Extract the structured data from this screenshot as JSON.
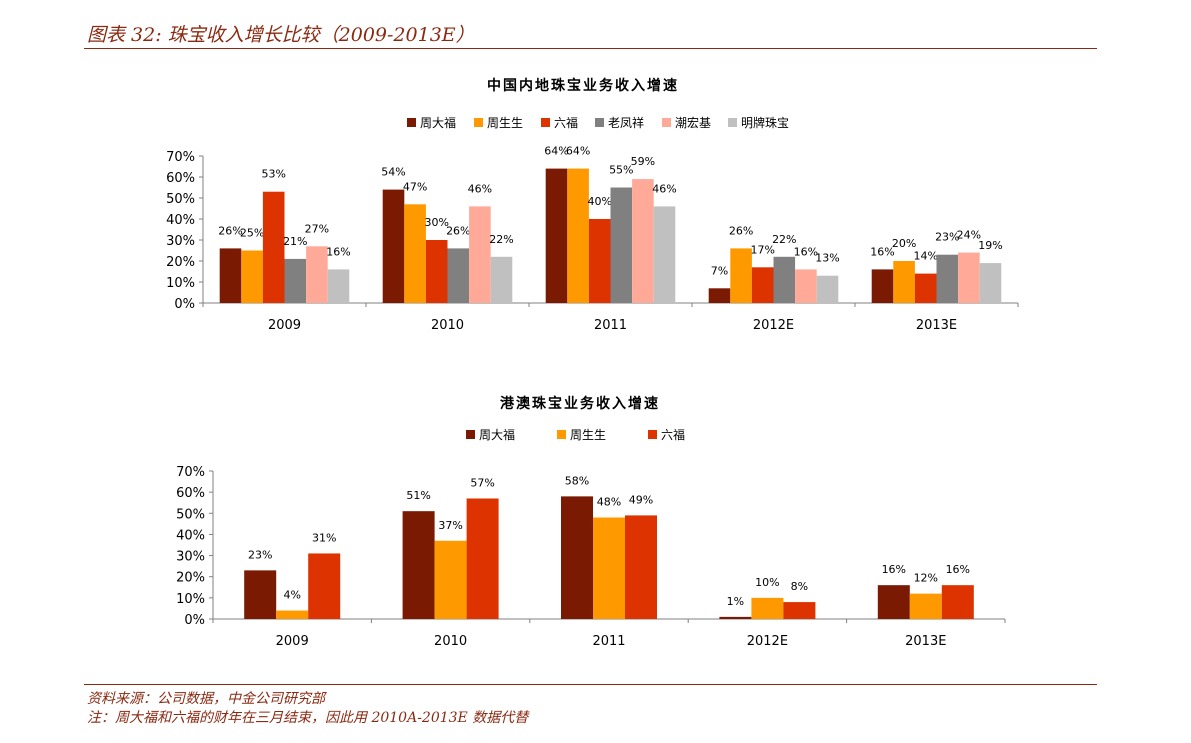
{
  "figure": {
    "title": "图表 32: 珠宝收入增长比较（2009-2013E）",
    "source": "资料来源：公司数据，中金公司研究部",
    "note": "注：周大福和六福的财年在三月结束，因此用 2010A-2013E 数据代替"
  },
  "chart_data": [
    {
      "type": "bar",
      "title": "中国内地珠宝业务收入增速",
      "categories": [
        "2009",
        "2010",
        "2011",
        "2012E",
        "2013E"
      ],
      "series": [
        {
          "name": "周大福",
          "color": "#7a1a02",
          "values": [
            26,
            54,
            64,
            7,
            16
          ],
          "labels": [
            "26%",
            "54%",
            "64%",
            "7%",
            "16%"
          ]
        },
        {
          "name": "周生生",
          "color": "#ff9900",
          "values": [
            25,
            47,
            64,
            26,
            20
          ],
          "labels": [
            "25%",
            "47%",
            "64%",
            "26%",
            "20%"
          ]
        },
        {
          "name": "六福",
          "color": "#dd3300",
          "values": [
            53,
            30,
            40,
            17,
            14
          ],
          "labels": [
            "53%",
            "30%",
            "40%",
            "17%",
            "14%"
          ]
        },
        {
          "name": "老凤祥",
          "color": "#808080",
          "values": [
            21,
            26,
            55,
            22,
            23
          ],
          "labels": [
            "21%",
            "26%",
            "55%",
            "22%",
            "23%"
          ]
        },
        {
          "name": "潮宏基",
          "color": "#ffaa99",
          "values": [
            27,
            46,
            59,
            16,
            24
          ],
          "labels": [
            "27%",
            "46%",
            "59%",
            "16%",
            "24%"
          ]
        },
        {
          "name": "明牌珠宝",
          "color": "#c0c0c0",
          "values": [
            16,
            22,
            46,
            13,
            19
          ],
          "labels": [
            "16%",
            "22%",
            "46%",
            "13%",
            "19%"
          ]
        }
      ],
      "ylim": [
        0,
        70
      ],
      "yticks": [
        "0%",
        "10%",
        "20%",
        "30%",
        "40%",
        "50%",
        "60%",
        "70%"
      ],
      "legend": "top",
      "grid": false
    },
    {
      "type": "bar",
      "title": "港澳珠宝业务收入增速",
      "categories": [
        "2009",
        "2010",
        "2011",
        "2012E",
        "2013E"
      ],
      "series": [
        {
          "name": "周大福",
          "color": "#7a1a02",
          "values": [
            23,
            51,
            58,
            1,
            16
          ],
          "labels": [
            "23%",
            "51%",
            "58%",
            "1%",
            "16%"
          ]
        },
        {
          "name": "周生生",
          "color": "#ff9900",
          "values": [
            4,
            37,
            48,
            10,
            12
          ],
          "labels": [
            "4%",
            "37%",
            "48%",
            "10%",
            "12%"
          ]
        },
        {
          "name": "六福",
          "color": "#dd3300",
          "values": [
            31,
            57,
            49,
            8,
            16
          ],
          "labels": [
            "31%",
            "57%",
            "49%",
            "8%",
            "16%"
          ]
        }
      ],
      "ylim": [
        0,
        70
      ],
      "yticks": [
        "0%",
        "10%",
        "20%",
        "30%",
        "40%",
        "50%",
        "60%",
        "70%"
      ],
      "legend": "top",
      "grid": false
    }
  ]
}
